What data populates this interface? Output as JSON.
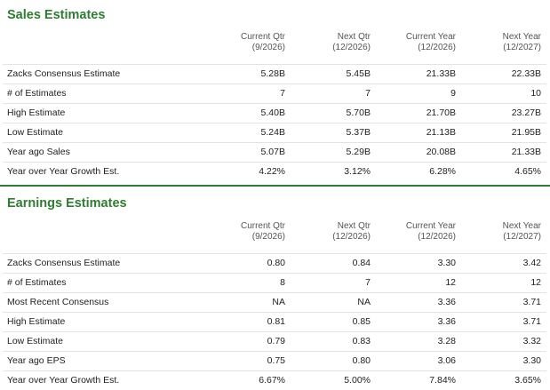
{
  "sales": {
    "title": "Sales Estimates",
    "columns": [
      {
        "label": "Current Qtr",
        "period": "(9/2026)"
      },
      {
        "label": "Next Qtr",
        "period": "(12/2026)"
      },
      {
        "label": "Current Year",
        "period": "(12/2026)"
      },
      {
        "label": "Next Year",
        "period": "(12/2027)"
      }
    ],
    "rows": [
      {
        "label": "Zacks Consensus Estimate",
        "values": [
          "5.28B",
          "5.45B",
          "21.33B",
          "22.33B"
        ]
      },
      {
        "label": "# of Estimates",
        "values": [
          "7",
          "7",
          "9",
          "10"
        ]
      },
      {
        "label": "High Estimate",
        "values": [
          "5.40B",
          "5.70B",
          "21.70B",
          "23.27B"
        ]
      },
      {
        "label": "Low Estimate",
        "values": [
          "5.24B",
          "5.37B",
          "21.13B",
          "21.95B"
        ]
      },
      {
        "label": "Year ago Sales",
        "values": [
          "5.07B",
          "5.29B",
          "20.08B",
          "21.33B"
        ]
      },
      {
        "label": "Year over Year Growth Est.",
        "values": [
          "4.22%",
          "3.12%",
          "6.28%",
          "4.65%"
        ]
      }
    ]
  },
  "earnings": {
    "title": "Earnings Estimates",
    "columns": [
      {
        "label": "Current Qtr",
        "period": "(9/2026)"
      },
      {
        "label": "Next Qtr",
        "period": "(12/2026)"
      },
      {
        "label": "Current Year",
        "period": "(12/2026)"
      },
      {
        "label": "Next Year",
        "period": "(12/2027)"
      }
    ],
    "rows": [
      {
        "label": "Zacks Consensus Estimate",
        "values": [
          "0.80",
          "0.84",
          "3.30",
          "3.42"
        ]
      },
      {
        "label": "# of Estimates",
        "values": [
          "8",
          "7",
          "12",
          "12"
        ]
      },
      {
        "label": "Most Recent Consensus",
        "values": [
          "NA",
          "NA",
          "3.36",
          "3.71"
        ]
      },
      {
        "label": "High Estimate",
        "values": [
          "0.81",
          "0.85",
          "3.36",
          "3.71"
        ]
      },
      {
        "label": "Low Estimate",
        "values": [
          "0.79",
          "0.83",
          "3.28",
          "3.32"
        ]
      },
      {
        "label": "Year ago EPS",
        "values": [
          "0.75",
          "0.80",
          "3.06",
          "3.30"
        ]
      },
      {
        "label": "Year over Year Growth Est.",
        "values": [
          "6.67%",
          "5.00%",
          "7.84%",
          "3.65%"
        ]
      }
    ]
  },
  "colors": {
    "accent": "#2e7d32",
    "row_border": "#e3e3e3"
  }
}
